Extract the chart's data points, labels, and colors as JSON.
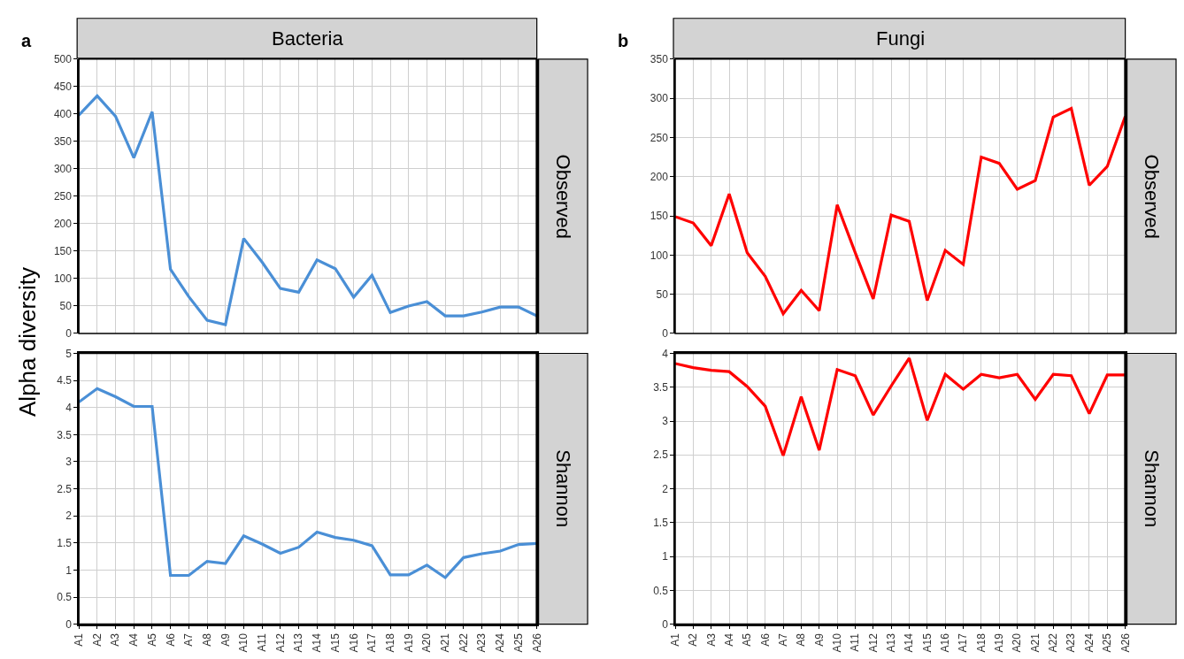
{
  "chart_data": [
    {
      "type": "line",
      "title": "Bacteria",
      "ylabel": "Alpha diversity",
      "annotations": [
        "a",
        "Observed"
      ],
      "tick_labels": "y",
      "grid": true,
      "categories": [
        "A1",
        "A2",
        "A3",
        "A4",
        "A5",
        "A6",
        "A7",
        "A8",
        "A9",
        "A10",
        "A11",
        "A12",
        "A13",
        "A14",
        "A15",
        "A16",
        "A17",
        "A18",
        "A19",
        "A20",
        "A21",
        "A22",
        "A23",
        "A24",
        "A25",
        "A26"
      ],
      "series": [
        {
          "color": "#4a8fd6",
          "values": [
            398,
            433,
            396,
            320,
            404,
            117,
            67,
            24,
            16,
            173,
            130,
            82,
            75,
            134,
            118,
            66,
            106,
            38,
            50,
            58,
            32,
            32,
            39,
            48,
            48,
            32
          ]
        }
      ],
      "ylim": [
        0,
        500
      ],
      "yticks": [
        0,
        50,
        100,
        150,
        200,
        250,
        300,
        350,
        400,
        450,
        500
      ]
    },
    {
      "type": "line",
      "annotations": [
        "Shannon"
      ],
      "grid": true,
      "categories": [
        "A1",
        "A2",
        "A3",
        "A4",
        "A5",
        "A6",
        "A7",
        "A8",
        "A9",
        "A10",
        "A11",
        "A12",
        "A13",
        "A14",
        "A15",
        "A16",
        "A17",
        "A18",
        "A19",
        "A20",
        "A21",
        "A22",
        "A23",
        "A24",
        "A25",
        "A26"
      ],
      "series": [
        {
          "color": "#4a8fd6",
          "values": [
            4.1,
            4.35,
            4.2,
            4.02,
            4.02,
            0.9,
            0.9,
            1.16,
            1.12,
            1.63,
            1.48,
            1.31,
            1.42,
            1.7,
            1.6,
            1.55,
            1.45,
            0.91,
            0.91,
            1.09,
            0.86,
            1.23,
            1.3,
            1.35,
            1.47,
            1.49
          ]
        }
      ],
      "ylim": [
        0,
        5
      ],
      "yticks": [
        0,
        0.5,
        1,
        1.5,
        2,
        2.5,
        3,
        3.5,
        4,
        4.5,
        5
      ]
    },
    {
      "type": "line",
      "title": "Fungi",
      "annotations": [
        "b",
        "Observed"
      ],
      "tick_labels": "y",
      "grid": true,
      "categories": [
        "A1",
        "A2",
        "A3",
        "A4",
        "A5",
        "A6",
        "A7",
        "A8",
        "A9",
        "A10",
        "A11",
        "A12",
        "A13",
        "A14",
        "A15",
        "A16",
        "A17",
        "A18",
        "A19",
        "A20",
        "A21",
        "A22",
        "A23",
        "A24",
        "A25",
        "A26"
      ],
      "series": [
        {
          "color": "#ff0000",
          "values": [
            149,
            141,
            112,
            178,
            103,
            73,
            25,
            55,
            29,
            164,
            103,
            44,
            151,
            143,
            42,
            106,
            88,
            225,
            217,
            184,
            195,
            276,
            287,
            189,
            213,
            277
          ]
        }
      ],
      "ylim": [
        0,
        350
      ],
      "yticks": [
        0,
        50,
        100,
        150,
        200,
        250,
        300,
        350
      ]
    },
    {
      "type": "line",
      "annotations": [
        "Shannon"
      ],
      "grid": true,
      "categories": [
        "A1",
        "A2",
        "A3",
        "A4",
        "A5",
        "A6",
        "A7",
        "A8",
        "A9",
        "A10",
        "A11",
        "A12",
        "A13",
        "A14",
        "A15",
        "A16",
        "A17",
        "A18",
        "A19",
        "A20",
        "A21",
        "A22",
        "A23",
        "A24",
        "A25",
        "A26"
      ],
      "series": [
        {
          "color": "#ff0000",
          "values": [
            3.85,
            3.79,
            3.75,
            3.73,
            3.51,
            3.22,
            2.49,
            3.36,
            2.57,
            3.76,
            3.67,
            3.09,
            3.52,
            3.93,
            3.01,
            3.69,
            3.47,
            3.69,
            3.64,
            3.69,
            3.32,
            3.69,
            3.67,
            3.11,
            3.68,
            3.68
          ]
        }
      ],
      "ylim": [
        0,
        4
      ],
      "yticks": [
        0,
        0.5,
        1,
        1.5,
        2,
        2.5,
        3,
        3.5,
        4
      ]
    }
  ]
}
